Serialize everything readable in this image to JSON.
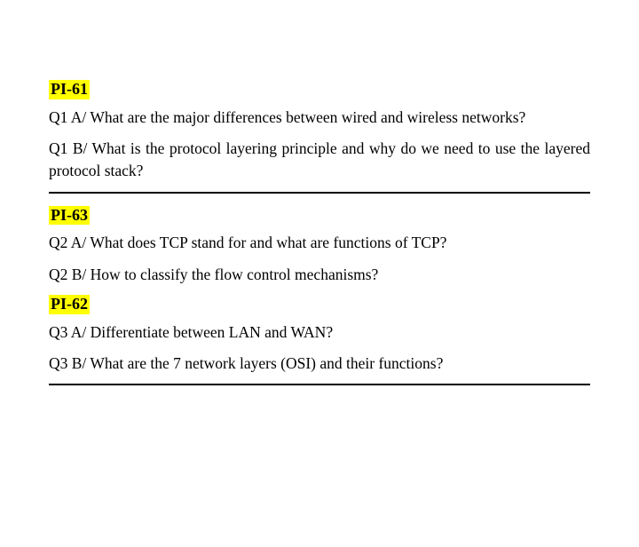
{
  "background_color": "#ffffff",
  "text_color": "#000000",
  "highlight_color": "#ffff00",
  "rule_color": "#000000",
  "font_family": "Times New Roman",
  "heading_fontsize": 18,
  "body_fontsize": 18,
  "sections": [
    {
      "label": "PI-61",
      "questions": [
        "Q1 A/ What are the major differences between wired and wireless networks?",
        "Q1 B/ What is the protocol layering principle and why do we need to use the layered protocol stack?"
      ],
      "rule_after": true
    },
    {
      "label": "PI-63",
      "questions": [
        "Q2 A/ What does TCP stand for and what are functions of TCP?",
        "Q2 B/ How to classify the flow control mechanisms?"
      ],
      "rule_after": false
    },
    {
      "label": "PI-62",
      "questions": [
        "Q3 A/ Differentiate between LAN and WAN?",
        "Q3 B/ What are the 7 network layers (OSI) and their functions?"
      ],
      "rule_after": true
    }
  ]
}
